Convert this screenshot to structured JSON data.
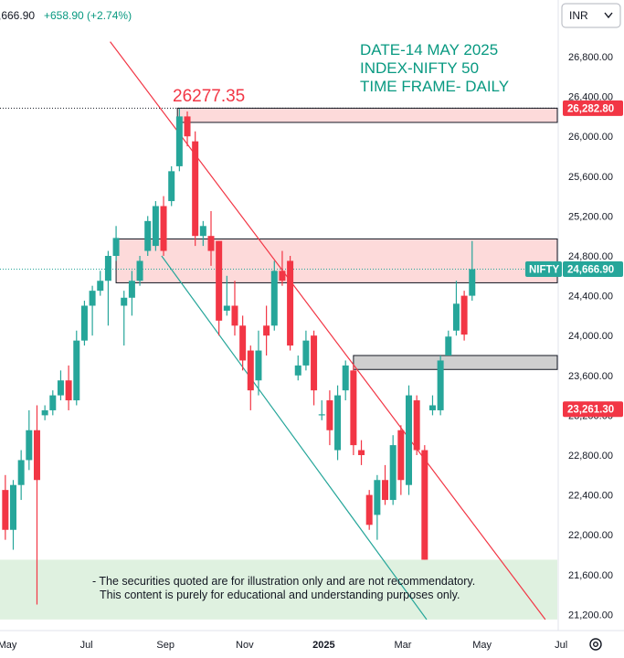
{
  "header": {
    "ohlc_prefix": ",666.90",
    "change": "+658.90 (+2.74%)",
    "currency": "INR"
  },
  "annotations": {
    "date_line": "DATE-14 MAY 2025",
    "index_line": "INDEX-NIFTY 50",
    "timeframe_line": "TIME FRAME- DAILY",
    "high_label": "26277.35",
    "disclaimer_line1": "- The securities quoted are for illustration only and are not recommendatory.",
    "disclaimer_line2": "This content is purely for educational and understanding purposes only."
  },
  "tags": {
    "symbol": "NIFTY",
    "last_price": "24,666.90",
    "top_level": "26,282.80",
    "lower_level": "23,261.30"
  },
  "colors": {
    "bull": "#26a69a",
    "bear": "#f23645",
    "resistance_zone": "#fddada",
    "gray_zone": "#cfcfcf",
    "disclaimer_zone": "#dff1e0",
    "red_line": "#f23645",
    "green_line": "#26a69a"
  },
  "chart_data": {
    "type": "candlestick",
    "title": "",
    "xlabel": "",
    "ylabel": "",
    "ylim": [
      21100,
      26900
    ],
    "y_ticks": [
      "26,800.00",
      "26,400.00",
      "26,000.00",
      "25,600.00",
      "25,200.00",
      "24,800.00",
      "24,400.00",
      "24,000.00",
      "23,600.00",
      "23,200.00",
      "22,800.00",
      "22,400.00",
      "22,000.00",
      "21,600.00",
      "21,200.00"
    ],
    "y_tick_values": [
      26800,
      26400,
      26000,
      25600,
      25200,
      24800,
      24400,
      24000,
      23600,
      23200,
      22800,
      22400,
      22000,
      21600,
      21200
    ],
    "x_labels": [
      "May",
      "Jul",
      "Sep",
      "Nov",
      "2025",
      "Mar",
      "May",
      "Jul"
    ],
    "x_label_months": [
      0,
      2,
      4,
      6,
      8,
      10,
      12,
      14
    ],
    "last_close": 24666.9,
    "zones": [
      {
        "top": 26282.8,
        "bottom": 26140,
        "start": 4.3,
        "end": 15.2,
        "kind": "resistance"
      },
      {
        "top": 24970,
        "bottom": 24530,
        "start": 2.75,
        "end": 15.2,
        "kind": "resistance"
      },
      {
        "top": 23800,
        "bottom": 23660,
        "start": 8.75,
        "end": 15.2,
        "kind": "gray"
      },
      {
        "top": 21750,
        "bottom": 21150,
        "start": -0.5,
        "end": 15.2,
        "kind": "disclaimer"
      }
    ],
    "trendlines": [
      {
        "color": "red",
        "from": [
          2.6,
          26950
        ],
        "to": [
          13.6,
          21150
        ]
      },
      {
        "color": "green",
        "from": [
          3.9,
          24800
        ],
        "to": [
          10.6,
          21150
        ]
      }
    ],
    "candles": [
      {
        "t": -0.05,
        "o": 22450,
        "h": 22600,
        "l": 21950,
        "c": 22050
      },
      {
        "t": 0.15,
        "o": 22050,
        "h": 22550,
        "l": 21850,
        "c": 22500
      },
      {
        "t": 0.35,
        "o": 22500,
        "h": 22850,
        "l": 22350,
        "c": 22750
      },
      {
        "t": 0.55,
        "o": 22750,
        "h": 23250,
        "l": 22650,
        "c": 23050
      },
      {
        "t": 0.75,
        "o": 23050,
        "h": 23300,
        "l": 21300,
        "c": 22550
      },
      {
        "t": 0.95,
        "o": 23200,
        "h": 23300,
        "l": 23150,
        "c": 23250
      },
      {
        "t": 1.15,
        "o": 23250,
        "h": 23450,
        "l": 23200,
        "c": 23400
      },
      {
        "t": 1.35,
        "o": 23400,
        "h": 23650,
        "l": 23350,
        "c": 23550
      },
      {
        "t": 1.55,
        "o": 23550,
        "h": 23700,
        "l": 23250,
        "c": 23350
      },
      {
        "t": 1.75,
        "o": 23350,
        "h": 24050,
        "l": 23300,
        "c": 23950
      },
      {
        "t": 1.95,
        "o": 23950,
        "h": 24350,
        "l": 23900,
        "c": 24300
      },
      {
        "t": 2.15,
        "o": 24300,
        "h": 24500,
        "l": 24000,
        "c": 24450
      },
      {
        "t": 2.35,
        "o": 24450,
        "h": 24650,
        "l": 24400,
        "c": 24550
      },
      {
        "t": 2.55,
        "o": 24550,
        "h": 24850,
        "l": 24100,
        "c": 24800
      },
      {
        "t": 2.75,
        "o": 24800,
        "h": 25100,
        "l": 24750,
        "c": 24980
      },
      {
        "t": 2.95,
        "o": 24300,
        "h": 24450,
        "l": 23900,
        "c": 24380
      },
      {
        "t": 3.15,
        "o": 24380,
        "h": 24650,
        "l": 24200,
        "c": 24550
      },
      {
        "t": 3.35,
        "o": 24550,
        "h": 24800,
        "l": 24500,
        "c": 24750
      },
      {
        "t": 3.55,
        "o": 24850,
        "h": 25200,
        "l": 24800,
        "c": 25150
      },
      {
        "t": 3.75,
        "o": 24900,
        "h": 25350,
        "l": 24850,
        "c": 25300
      },
      {
        "t": 3.95,
        "o": 25300,
        "h": 25400,
        "l": 24800,
        "c": 24850
      },
      {
        "t": 4.15,
        "o": 25350,
        "h": 25700,
        "l": 25300,
        "c": 25650
      },
      {
        "t": 4.35,
        "o": 25700,
        "h": 26277,
        "l": 25650,
        "c": 26200
      },
      {
        "t": 4.55,
        "o": 26200,
        "h": 26250,
        "l": 25900,
        "c": 26000
      },
      {
        "t": 4.75,
        "o": 25950,
        "h": 26050,
        "l": 24900,
        "c": 25000
      },
      {
        "t": 4.95,
        "o": 25000,
        "h": 25150,
        "l": 24900,
        "c": 25100
      },
      {
        "t": 5.15,
        "o": 25000,
        "h": 25250,
        "l": 24700,
        "c": 24850
      },
      {
        "t": 5.35,
        "o": 24950,
        "h": 24950,
        "l": 24000,
        "c": 24150
      },
      {
        "t": 5.55,
        "o": 24250,
        "h": 24600,
        "l": 24200,
        "c": 24300
      },
      {
        "t": 5.75,
        "o": 24300,
        "h": 24550,
        "l": 24000,
        "c": 24100
      },
      {
        "t": 5.95,
        "o": 24100,
        "h": 24200,
        "l": 23650,
        "c": 23750
      },
      {
        "t": 6.15,
        "o": 23850,
        "h": 23900,
        "l": 23250,
        "c": 23450
      },
      {
        "t": 6.35,
        "o": 23550,
        "h": 24050,
        "l": 23400,
        "c": 23850
      },
      {
        "t": 6.55,
        "o": 24100,
        "h": 24300,
        "l": 23800,
        "c": 24000
      },
      {
        "t": 6.75,
        "o": 24100,
        "h": 24750,
        "l": 24050,
        "c": 24650
      },
      {
        "t": 6.95,
        "o": 24650,
        "h": 24850,
        "l": 24500,
        "c": 24550
      },
      {
        "t": 7.15,
        "o": 24750,
        "h": 24800,
        "l": 23850,
        "c": 23900
      },
      {
        "t": 7.35,
        "o": 23600,
        "h": 23800,
        "l": 23550,
        "c": 23700
      },
      {
        "t": 7.55,
        "o": 23700,
        "h": 24050,
        "l": 23650,
        "c": 23950
      },
      {
        "t": 7.75,
        "o": 24000,
        "h": 24050,
        "l": 23300,
        "c": 23450
      },
      {
        "t": 7.95,
        "o": 23200,
        "h": 23350,
        "l": 23150,
        "c": 23210
      },
      {
        "t": 8.15,
        "o": 23350,
        "h": 23450,
        "l": 22900,
        "c": 23050
      },
      {
        "t": 8.35,
        "o": 22850,
        "h": 23500,
        "l": 22750,
        "c": 23400
      },
      {
        "t": 8.55,
        "o": 23450,
        "h": 23750,
        "l": 23350,
        "c": 23700
      },
      {
        "t": 8.75,
        "o": 23650,
        "h": 23700,
        "l": 22800,
        "c": 22900
      },
      {
        "t": 8.95,
        "o": 22850,
        "h": 22950,
        "l": 22700,
        "c": 22800
      },
      {
        "t": 9.15,
        "o": 22400,
        "h": 22450,
        "l": 22050,
        "c": 22100
      },
      {
        "t": 9.35,
        "o": 22200,
        "h": 22600,
        "l": 21950,
        "c": 22550
      },
      {
        "t": 9.55,
        "o": 22550,
        "h": 22700,
        "l": 22300,
        "c": 22350
      },
      {
        "t": 9.75,
        "o": 22350,
        "h": 23000,
        "l": 22300,
        "c": 22900
      },
      {
        "t": 9.95,
        "o": 23050,
        "h": 23100,
        "l": 22400,
        "c": 22550
      },
      {
        "t": 10.15,
        "o": 22500,
        "h": 23500,
        "l": 22400,
        "c": 23400
      },
      {
        "t": 10.35,
        "o": 23350,
        "h": 23400,
        "l": 22800,
        "c": 22850
      },
      {
        "t": 10.55,
        "o": 22850,
        "h": 22900,
        "l": 21750,
        "c": 21750
      },
      {
        "t": 10.75,
        "o": 23250,
        "h": 23400,
        "l": 23200,
        "c": 23300
      },
      {
        "t": 10.95,
        "o": 23250,
        "h": 23800,
        "l": 23200,
        "c": 23750
      },
      {
        "t": 11.15,
        "o": 23800,
        "h": 24050,
        "l": 23800,
        "c": 23990
      },
      {
        "t": 11.35,
        "o": 24050,
        "h": 24550,
        "l": 24000,
        "c": 24320
      },
      {
        "t": 11.55,
        "o": 24400,
        "h": 24450,
        "l": 23950,
        "c": 24010
      },
      {
        "t": 11.75,
        "o": 24400,
        "h": 24950,
        "l": 24350,
        "c": 24666.9
      }
    ]
  }
}
